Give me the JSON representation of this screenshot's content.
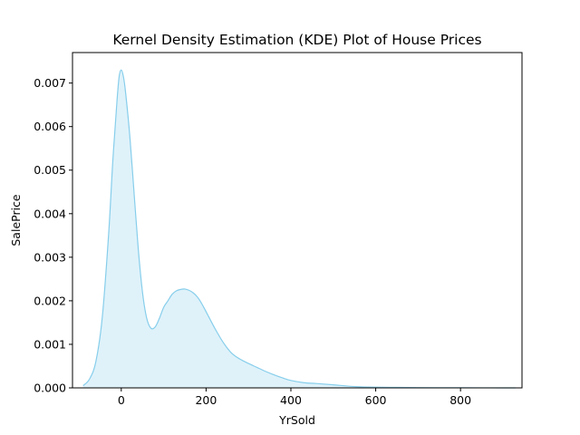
{
  "chart_data": {
    "type": "area",
    "title": "Kernel Density Estimation (KDE) Plot of House Prices",
    "xlabel": "YrSold",
    "ylabel": "SalePrice",
    "xlim": [
      -115,
      945
    ],
    "ylim": [
      0,
      0.0077
    ],
    "x_ticks": [
      0,
      200,
      400,
      600,
      800
    ],
    "y_ticks": [
      0.0,
      0.001,
      0.002,
      0.003,
      0.004,
      0.005,
      0.006,
      0.007
    ],
    "y_tick_labels": [
      "0.000",
      "0.001",
      "0.002",
      "0.003",
      "0.004",
      "0.005",
      "0.006",
      "0.007"
    ],
    "grid": false,
    "colors": {
      "line": "#87ceeb",
      "fill": "#87ceeb",
      "fill_opacity": 0.27
    },
    "series": [
      {
        "x": [
          -90,
          -75,
          -60,
          -45,
          -30,
          -20,
          -10,
          -5,
          0,
          5,
          10,
          20,
          30,
          40,
          50,
          60,
          70,
          80,
          90,
          100,
          110,
          120,
          130,
          140,
          150,
          160,
          170,
          180,
          190,
          200,
          220,
          240,
          260,
          280,
          300,
          320,
          340,
          360,
          380,
          400,
          430,
          460,
          500,
          550,
          600,
          650,
          700,
          750,
          800,
          850,
          900,
          930
        ],
        "y": [
          5e-05,
          0.0002,
          0.0006,
          0.0016,
          0.0035,
          0.0052,
          0.0066,
          0.00715,
          0.0073,
          0.00715,
          0.0068,
          0.0058,
          0.0045,
          0.0032,
          0.0022,
          0.0016,
          0.00137,
          0.0014,
          0.0016,
          0.00185,
          0.002,
          0.00215,
          0.00223,
          0.00226,
          0.00227,
          0.00224,
          0.00218,
          0.00208,
          0.00193,
          0.00175,
          0.00138,
          0.00105,
          0.0008,
          0.00066,
          0.00056,
          0.00047,
          0.00038,
          0.0003,
          0.00023,
          0.00017,
          0.00012,
          0.0001,
          7e-05,
          3e-05,
          1.5e-05,
          1e-05,
          6e-06,
          4e-06,
          2e-06,
          1e-06,
          5e-07,
          0.0
        ]
      }
    ]
  }
}
